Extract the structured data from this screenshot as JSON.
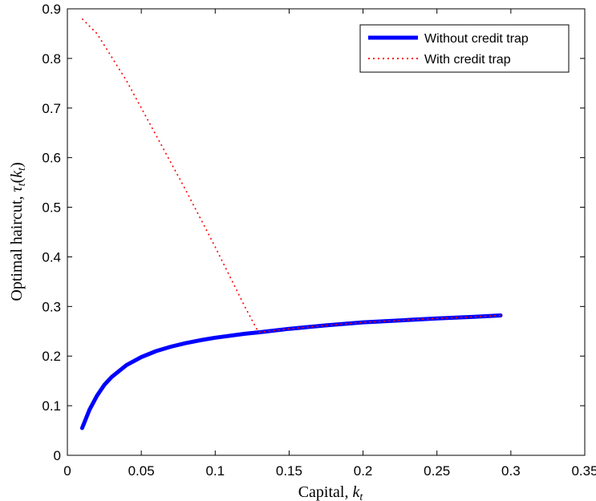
{
  "chart_data": {
    "type": "line",
    "xlabel": "Capital, ",
    "xlabel_var": "k",
    "xlabel_sub": "t",
    "ylabel": "Optimal haircut, ",
    "ylabel_var": "τ",
    "ylabel_sub": "t",
    "ylabel_arg": "k",
    "ylabel_arg_sub": "t",
    "xlim": [
      0,
      0.35
    ],
    "ylim": [
      0,
      0.9
    ],
    "xticks": [
      0,
      0.05,
      0.1,
      0.15,
      0.2,
      0.25,
      0.3,
      0.35
    ],
    "xtick_labels": [
      "0",
      "0.05",
      "0.1",
      "0.15",
      "0.2",
      "0.25",
      "0.3",
      "0.35"
    ],
    "yticks": [
      0,
      0.1,
      0.2,
      0.3,
      0.4,
      0.5,
      0.6,
      0.7,
      0.8,
      0.9
    ],
    "ytick_labels": [
      "0",
      "0.1",
      "0.2",
      "0.3",
      "0.4",
      "0.5",
      "0.6",
      "0.7",
      "0.8",
      "0.9"
    ],
    "grid": false,
    "legend_position": "top-right",
    "series": [
      {
        "name": "Without credit trap",
        "color": "#0000ff",
        "style": "solid",
        "x": [
          0.01,
          0.015,
          0.02,
          0.025,
          0.03,
          0.04,
          0.05,
          0.06,
          0.07,
          0.08,
          0.09,
          0.1,
          0.12,
          0.13,
          0.15,
          0.175,
          0.2,
          0.225,
          0.25,
          0.275,
          0.293
        ],
        "y": [
          0.055,
          0.092,
          0.12,
          0.142,
          0.158,
          0.182,
          0.198,
          0.21,
          0.219,
          0.226,
          0.232,
          0.237,
          0.245,
          0.248,
          0.255,
          0.262,
          0.268,
          0.272,
          0.276,
          0.279,
          0.282
        ]
      },
      {
        "name": "With credit trap",
        "color": "#ff0000",
        "style": "dotted",
        "x": [
          0.01,
          0.02,
          0.04,
          0.06,
          0.08,
          0.1,
          0.12,
          0.128,
          0.13,
          0.15,
          0.175,
          0.2,
          0.225,
          0.25,
          0.275,
          0.293
        ],
        "y": [
          0.88,
          0.85,
          0.755,
          0.645,
          0.535,
          0.42,
          0.3,
          0.255,
          0.248,
          0.255,
          0.262,
          0.268,
          0.272,
          0.276,
          0.279,
          0.282
        ]
      }
    ]
  }
}
